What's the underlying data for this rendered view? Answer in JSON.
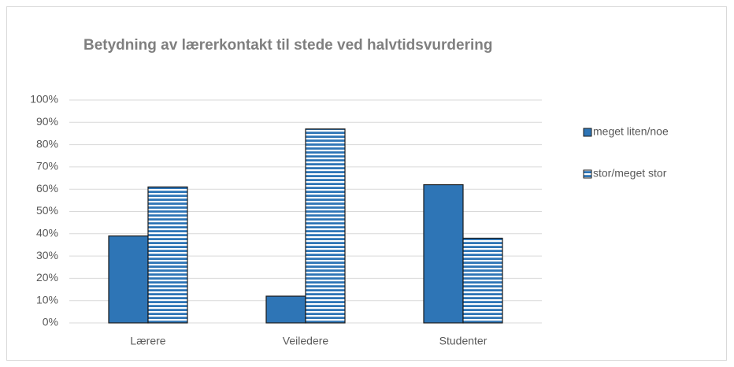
{
  "chart_data": {
    "type": "bar",
    "title": "Betydning av lærerkontakt til stede ved halvtidsvurdering",
    "categories": [
      "Lærere",
      "Veiledere",
      "Studenter"
    ],
    "series": [
      {
        "name": "meget liten/noe",
        "color": "#2e75b6",
        "values": [
          39,
          12,
          62
        ]
      },
      {
        "name": "stor/meget stor",
        "color": "#2e75b6",
        "pattern": "horizontal-stripes",
        "values": [
          61,
          87,
          38
        ]
      }
    ],
    "ylim": [
      0,
      100
    ],
    "yticks": [
      {
        "value": 0,
        "label": "0%"
      },
      {
        "value": 10,
        "label": "10%"
      },
      {
        "value": 20,
        "label": "20%"
      },
      {
        "value": 30,
        "label": "30%"
      },
      {
        "value": 40,
        "label": "40%"
      },
      {
        "value": 50,
        "label": "50%"
      },
      {
        "value": 60,
        "label": "60%"
      },
      {
        "value": 70,
        "label": "70%"
      },
      {
        "value": 80,
        "label": "80%"
      },
      {
        "value": 90,
        "label": "90%"
      },
      {
        "value": 100,
        "label": "100%"
      }
    ],
    "grid": true,
    "legend": "right"
  }
}
